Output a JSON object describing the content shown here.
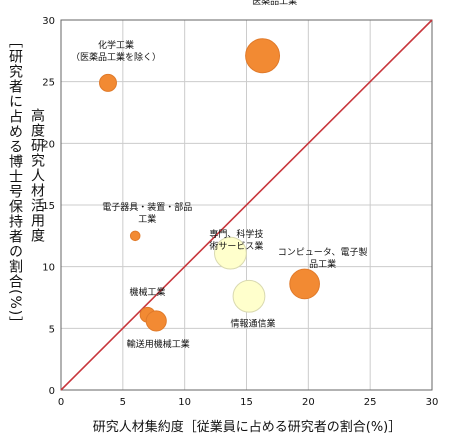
{
  "chart_data": {
    "type": "scatter",
    "xlabel": "研究人材集約度［従業員に占める研究者の割合(%)］",
    "ylabel": "高度研究人材活用度",
    "ylabel_sub": "［研究者に占める博士号保持者の割合(%)］",
    "xlim": [
      0,
      30
    ],
    "ylim": [
      0,
      30
    ],
    "x_ticks": [
      0,
      5,
      10,
      15,
      20,
      25,
      30
    ],
    "y_ticks": [
      0,
      5,
      10,
      15,
      20,
      25,
      30
    ],
    "grid": true,
    "diagonal_line": true,
    "colors": {
      "primary": "#f28a33",
      "secondary": "#ffffcc",
      "diagonal": "#c8363c",
      "grid": "#cccccc"
    },
    "points": [
      {
        "label": "医薬品工業",
        "x": 16.3,
        "y": 27.1,
        "size": 3.2,
        "color": "primary"
      },
      {
        "label": "化学工業\n（医薬品工業を除く）",
        "x": 3.8,
        "y": 24.9,
        "size": 1.6,
        "color": "primary"
      },
      {
        "label": "電子器具・装置・部品\n工業",
        "x": 6.0,
        "y": 12.5,
        "size": 0.9,
        "color": "primary"
      },
      {
        "label": "専門、科学技\n術サービス業",
        "x": 13.7,
        "y": 11.1,
        "size": 3.0,
        "color": "secondary"
      },
      {
        "label": "コンピュータ、電子製\n品工業",
        "x": 19.7,
        "y": 8.6,
        "size": 2.8,
        "color": "primary"
      },
      {
        "label": "情報通信業",
        "x": 15.2,
        "y": 7.6,
        "size": 3.0,
        "color": "secondary"
      },
      {
        "label": "機械工業",
        "x": 7.0,
        "y": 6.1,
        "size": 1.4,
        "color": "primary"
      },
      {
        "label": "輸送用機械工業",
        "x": 7.7,
        "y": 5.6,
        "size": 1.9,
        "color": "primary"
      }
    ]
  }
}
